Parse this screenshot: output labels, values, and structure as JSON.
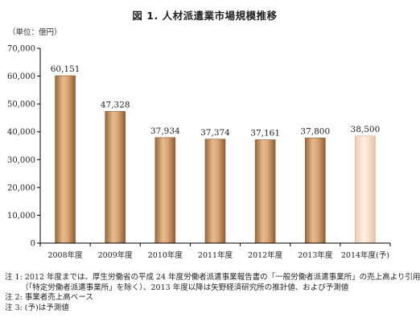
{
  "title": "図 1.  人材派遣業市場規模推移",
  "unit_label": "（単位：億円）",
  "chart_data": {
    "type": "bar",
    "categories": [
      "2008年度",
      "2009年度",
      "2010年度",
      "2011年度",
      "2012年度",
      "2013年度",
      "2014年度(予)"
    ],
    "values": [
      60151,
      47328,
      37934,
      37374,
      37161,
      37800,
      38500
    ],
    "value_labels": [
      "60,151",
      "47,328",
      "37,934",
      "37,374",
      "37,161",
      "37,800",
      "38,500"
    ],
    "forecast_index": 6,
    "ylim": [
      0,
      70000
    ],
    "y_ticks": [
      0,
      10000,
      20000,
      30000,
      40000,
      50000,
      60000,
      70000
    ],
    "y_tick_labels": [
      "0",
      "10,000",
      "20,000",
      "30,000",
      "40,000",
      "50,000",
      "60,000",
      "70,000"
    ],
    "xlabel": "",
    "ylabel": "",
    "grid": false,
    "colors": {
      "bar": "#c08a5c",
      "bar_forecast": "#f5dcc6",
      "axis": "#000000"
    }
  },
  "notes": [
    "注 1: 2012 年度までは、厚生労働省の平成 24 年度労働者派遣事業報告書の「一般労働者派遣事業所」の売上高より引用",
    "（「特定労働者派遣事業所」を除く）、2013 年度以降は矢野経済研究所の推計値、および予測値",
    "注 2:  事業者売上高ベース",
    "注 3:  (予)は予測値"
  ]
}
